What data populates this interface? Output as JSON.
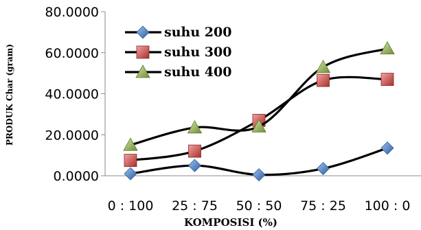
{
  "chart_data": {
    "type": "line",
    "title": "",
    "xlabel": "KOMPOSISI (%)",
    "ylabel": "PRODUK Char  (gram)",
    "ylim": [
      0,
      80
    ],
    "y_ticks": [
      "0.0000",
      "20.0000",
      "40.0000",
      "60.0000",
      "80.0000"
    ],
    "categories": [
      "0 : 100",
      "25 : 75",
      "50 : 50",
      "75 : 25",
      "100 : 0"
    ],
    "grid": false,
    "smooth": true,
    "legend_position": "top-left",
    "series": [
      {
        "name": "suhu 200",
        "marker": "diamond",
        "color": "#4A7EBB",
        "values": [
          1.0,
          5.0,
          0.5,
          3.5,
          13.5
        ]
      },
      {
        "name": "suhu 300",
        "marker": "square",
        "color": "#C0504D",
        "values": [
          7.5,
          12.0,
          27.0,
          46.5,
          47.0
        ]
      },
      {
        "name": "suhu 400",
        "marker": "triangle",
        "color": "#9BBB59",
        "values": [
          15.0,
          23.5,
          24.0,
          53.0,
          62.0
        ]
      }
    ]
  }
}
